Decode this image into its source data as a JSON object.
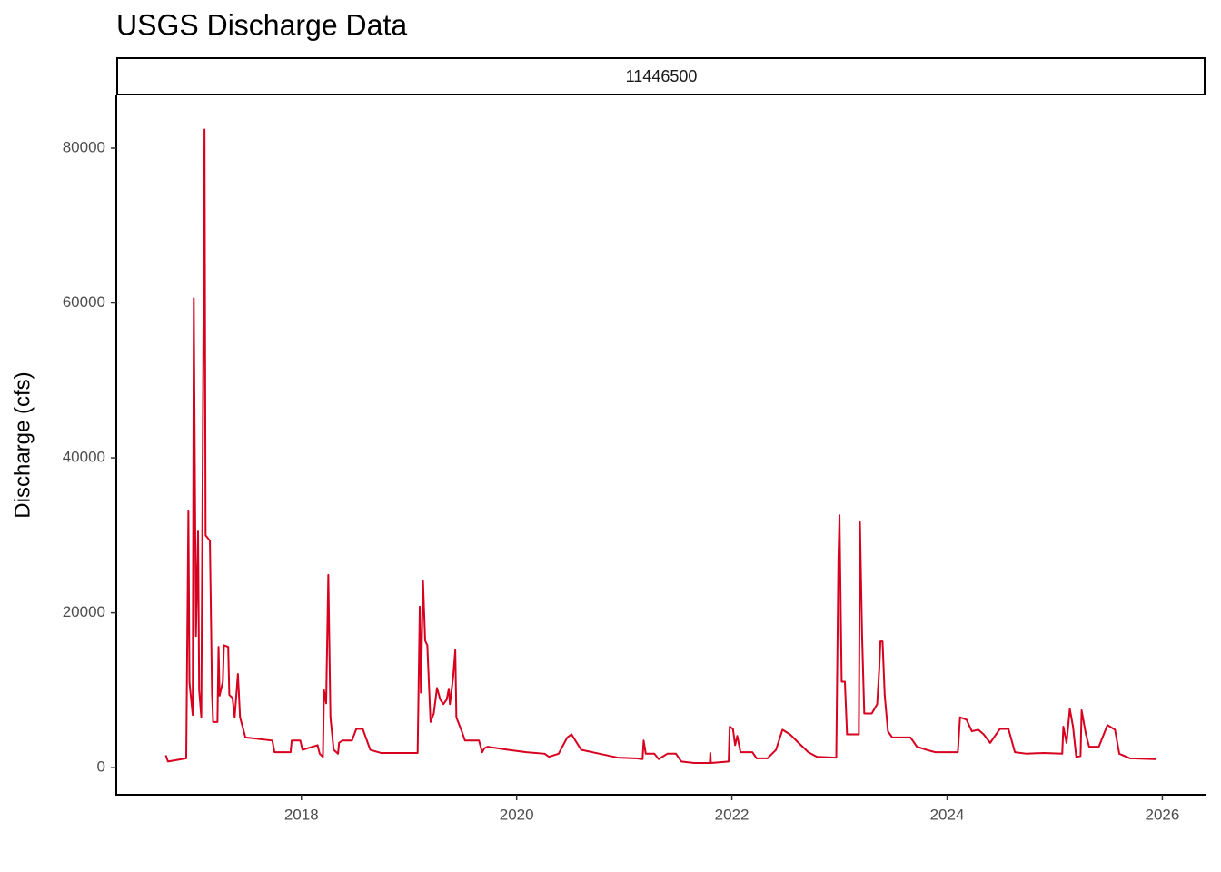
{
  "chart_data": {
    "type": "line",
    "title": "USGS Discharge Data",
    "strip": "11446500",
    "y_label": "Discharge (cfs)",
    "color": "#d7001f",
    "xlim": [
      2016.28,
      2026.41
    ],
    "xticks": [
      2018,
      2020,
      2022,
      2024,
      2026
    ],
    "ylim": [
      -3500,
      86800
    ],
    "yticks": [
      0,
      20000,
      40000,
      60000,
      80000
    ],
    "grid": false,
    "x": [
      2016.74,
      2016.76,
      2016.93,
      2016.95,
      2016.96,
      2016.99,
      2017.0,
      2017.02,
      2017.04,
      2017.05,
      2017.07,
      2017.1,
      2017.11,
      2017.15,
      2017.17,
      2017.18,
      2017.22,
      2017.23,
      2017.24,
      2017.27,
      2017.28,
      2017.32,
      2017.33,
      2017.36,
      2017.38,
      2017.41,
      2017.43,
      2017.48,
      2017.73,
      2017.75,
      2017.9,
      2017.91,
      2017.99,
      2018.01,
      2018.15,
      2018.17,
      2018.2,
      2018.21,
      2018.23,
      2018.25,
      2018.27,
      2018.3,
      2018.34,
      2018.35,
      2018.38,
      2018.47,
      2018.51,
      2018.57,
      2018.64,
      2018.74,
      2018.91,
      2019.08,
      2019.1,
      2019.11,
      2019.13,
      2019.15,
      2019.17,
      2019.2,
      2019.23,
      2019.26,
      2019.29,
      2019.32,
      2019.35,
      2019.37,
      2019.38,
      2019.41,
      2019.43,
      2019.44,
      2019.49,
      2019.52,
      2019.65,
      2019.68,
      2019.7,
      2019.73,
      2019.92,
      2020.09,
      2020.26,
      2020.3,
      2020.39,
      2020.47,
      2020.51,
      2020.6,
      2020.77,
      2020.94,
      2021.11,
      2021.17,
      2021.18,
      2021.2,
      2021.28,
      2021.32,
      2021.4,
      2021.48,
      2021.53,
      2021.65,
      2021.795,
      2021.8,
      2021.805,
      2021.97,
      2021.98,
      2022.01,
      2022.03,
      2022.05,
      2022.08,
      2022.19,
      2022.23,
      2022.33,
      2022.41,
      2022.47,
      2022.54,
      2022.62,
      2022.71,
      2022.79,
      2022.97,
      2022.99,
      2023.0,
      2023.02,
      2023.05,
      2023.07,
      2023.18,
      2023.19,
      2023.21,
      2023.23,
      2023.3,
      2023.35,
      2023.37,
      2023.38,
      2023.4,
      2023.42,
      2023.45,
      2023.49,
      2023.66,
      2023.72,
      2023.81,
      2023.89,
      2024.1,
      2024.12,
      2024.18,
      2024.23,
      2024.29,
      2024.34,
      2024.4,
      2024.49,
      2024.57,
      2024.63,
      2024.74,
      2024.9,
      2025.07,
      2025.08,
      2025.11,
      2025.14,
      2025.17,
      2025.2,
      2025.24,
      2025.25,
      2025.29,
      2025.32,
      2025.41,
      2025.49,
      2025.56,
      2025.6,
      2025.7,
      2025.94
    ],
    "values": [
      1600,
      800,
      1200,
      33100,
      11000,
      6800,
      60600,
      17000,
      30500,
      10000,
      6500,
      82400,
      30000,
      29300,
      9400,
      5900,
      5900,
      15600,
      9300,
      11100,
      15800,
      15600,
      9400,
      9000,
      6500,
      12100,
      6500,
      3900,
      3500,
      2000,
      2000,
      3500,
      3500,
      2300,
      2900,
      1800,
      1400,
      10000,
      8300,
      24900,
      6500,
      2300,
      1800,
      3200,
      3500,
      3500,
      5000,
      5000,
      2300,
      1900,
      1900,
      1900,
      20800,
      9700,
      24100,
      16400,
      15800,
      5900,
      7000,
      10300,
      8800,
      8200,
      8800,
      10200,
      8200,
      11700,
      15200,
      6500,
      4700,
      3500,
      3500,
      2000,
      2500,
      2700,
      2300,
      2000,
      1800,
      1400,
      1800,
      3900,
      4300,
      2300,
      1800,
      1300,
      1200,
      1100,
      3500,
      1800,
      1800,
      1100,
      1800,
      1800,
      800,
      600,
      600,
      1900,
      600,
      800,
      5300,
      5000,
      2900,
      4100,
      2000,
      2000,
      1200,
      1200,
      2300,
      4900,
      4300,
      3200,
      2000,
      1400,
      1300,
      27000,
      32600,
      11100,
      11100,
      4300,
      4300,
      31700,
      17000,
      7000,
      7000,
      8200,
      12900,
      16300,
      16300,
      9400,
      4700,
      3900,
      3900,
      2700,
      2300,
      2000,
      2000,
      6500,
      6200,
      4700,
      4900,
      4300,
      3200,
      5000,
      5000,
      2000,
      1800,
      1900,
      1800,
      5300,
      3200,
      7600,
      5300,
      1400,
      1500,
      7400,
      4300,
      2700,
      2700,
      5500,
      4900,
      1800,
      1200,
      1100
    ]
  }
}
